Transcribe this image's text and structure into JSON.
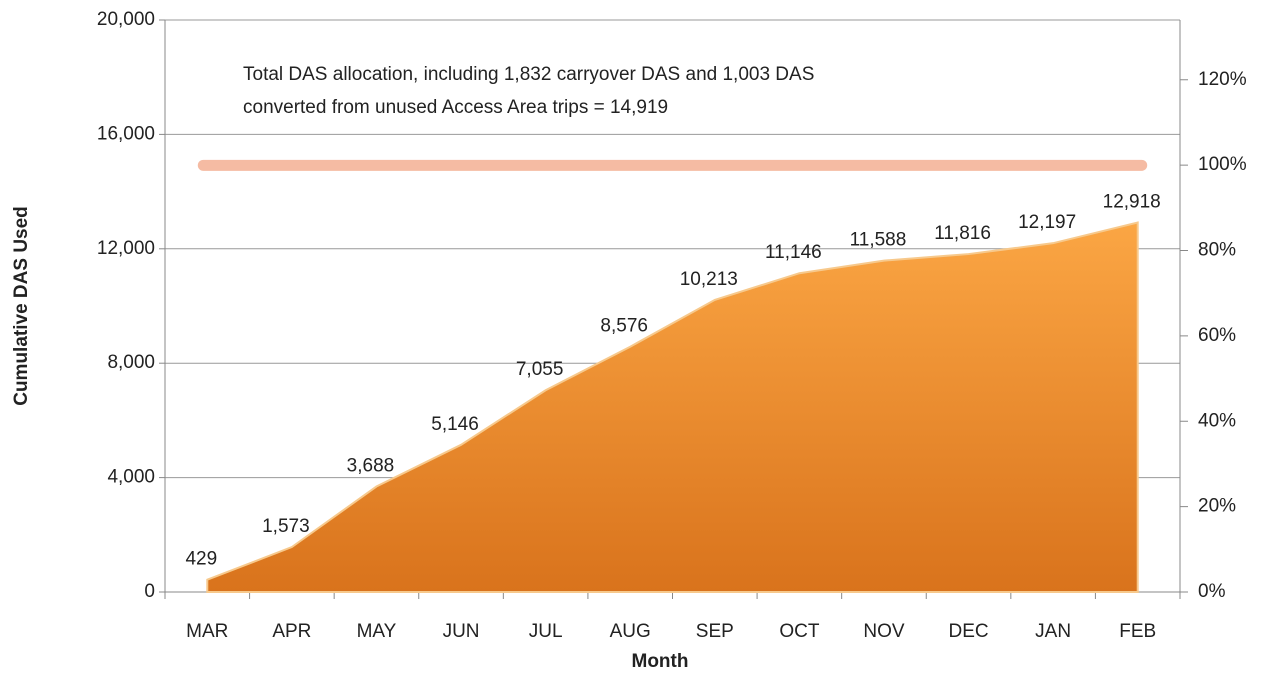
{
  "chart_data": {
    "type": "area",
    "annotation": "Total DAS allocation, including 1,832 carryover  DAS and 1,003 DAS converted from unused Access Area trips  = 14,919",
    "xlabel": "Month",
    "ylabel": "Cumulative DAS Used",
    "categories": [
      "MAR",
      "APR",
      "MAY",
      "JUN",
      "JUL",
      "AUG",
      "SEP",
      "OCT",
      "NOV",
      "DEC",
      "JAN",
      "FEB"
    ],
    "series": [
      {
        "name": "Cumulative DAS Used",
        "color": "#f0922e",
        "values": [
          429,
          1573,
          3688,
          5146,
          7055,
          8576,
          10213,
          11146,
          11588,
          11816,
          12197,
          12918
        ],
        "value_labels": [
          "429",
          "1,573",
          "3,688",
          "5,146",
          "7,055",
          "8,576",
          "10,213",
          "11,146",
          "11,588",
          "11,816",
          "12,197",
          "12,918"
        ]
      }
    ],
    "hline": 14919,
    "hline_color": "#f5bba3",
    "ylim": [
      0,
      20000
    ],
    "yticks": [
      0,
      {
        "value": 4000,
        "label": "4,000"
      },
      {
        "value": 8000,
        "label": "8,000"
      },
      {
        "value": 12000,
        "label": "12,000"
      },
      {
        "value": 16000,
        "label": "16,000"
      },
      {
        "value": 20000,
        "label": "20,000"
      }
    ],
    "y2lim": [
      0,
      134
    ],
    "y2ticks": [
      {
        "value": 0,
        "label": "0%"
      },
      {
        "value": 20,
        "label": "20%"
      },
      {
        "value": 40,
        "label": "40%"
      },
      {
        "value": 60,
        "label": "60%"
      },
      {
        "value": 80,
        "label": "80%"
      },
      {
        "value": 100,
        "label": "100%"
      },
      {
        "value": 120,
        "label": "120%"
      }
    ],
    "grid": true
  }
}
